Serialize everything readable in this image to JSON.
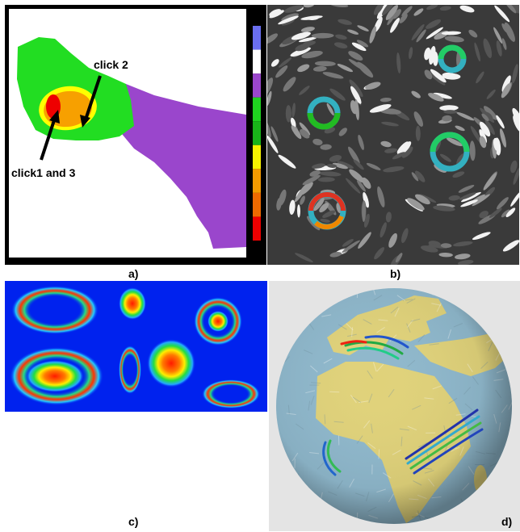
{
  "figure": {
    "panels": [
      {
        "id": "a",
        "caption": "a)",
        "annotations": [
          "click 2",
          "click1 and 3"
        ]
      },
      {
        "id": "b",
        "caption": "b)"
      },
      {
        "id": "c",
        "caption": "c)"
      },
      {
        "id": "d",
        "caption": "d)"
      }
    ],
    "colorbar": [
      "#6a6ef0",
      "#ffffff",
      "#9a46cc",
      "#1fd21f",
      "#19b419",
      "#f7f400",
      "#f39a00",
      "#ee6a00",
      "#ee0000"
    ],
    "colors": {
      "purple": "#9a46cc",
      "green": "#22dd22",
      "yellow": "#ffff00",
      "orange": "#f7a000",
      "red": "#ee0000",
      "field_blue": "#0022ee",
      "ocean": "#8fb8cc",
      "land": "#e0d27a"
    }
  }
}
